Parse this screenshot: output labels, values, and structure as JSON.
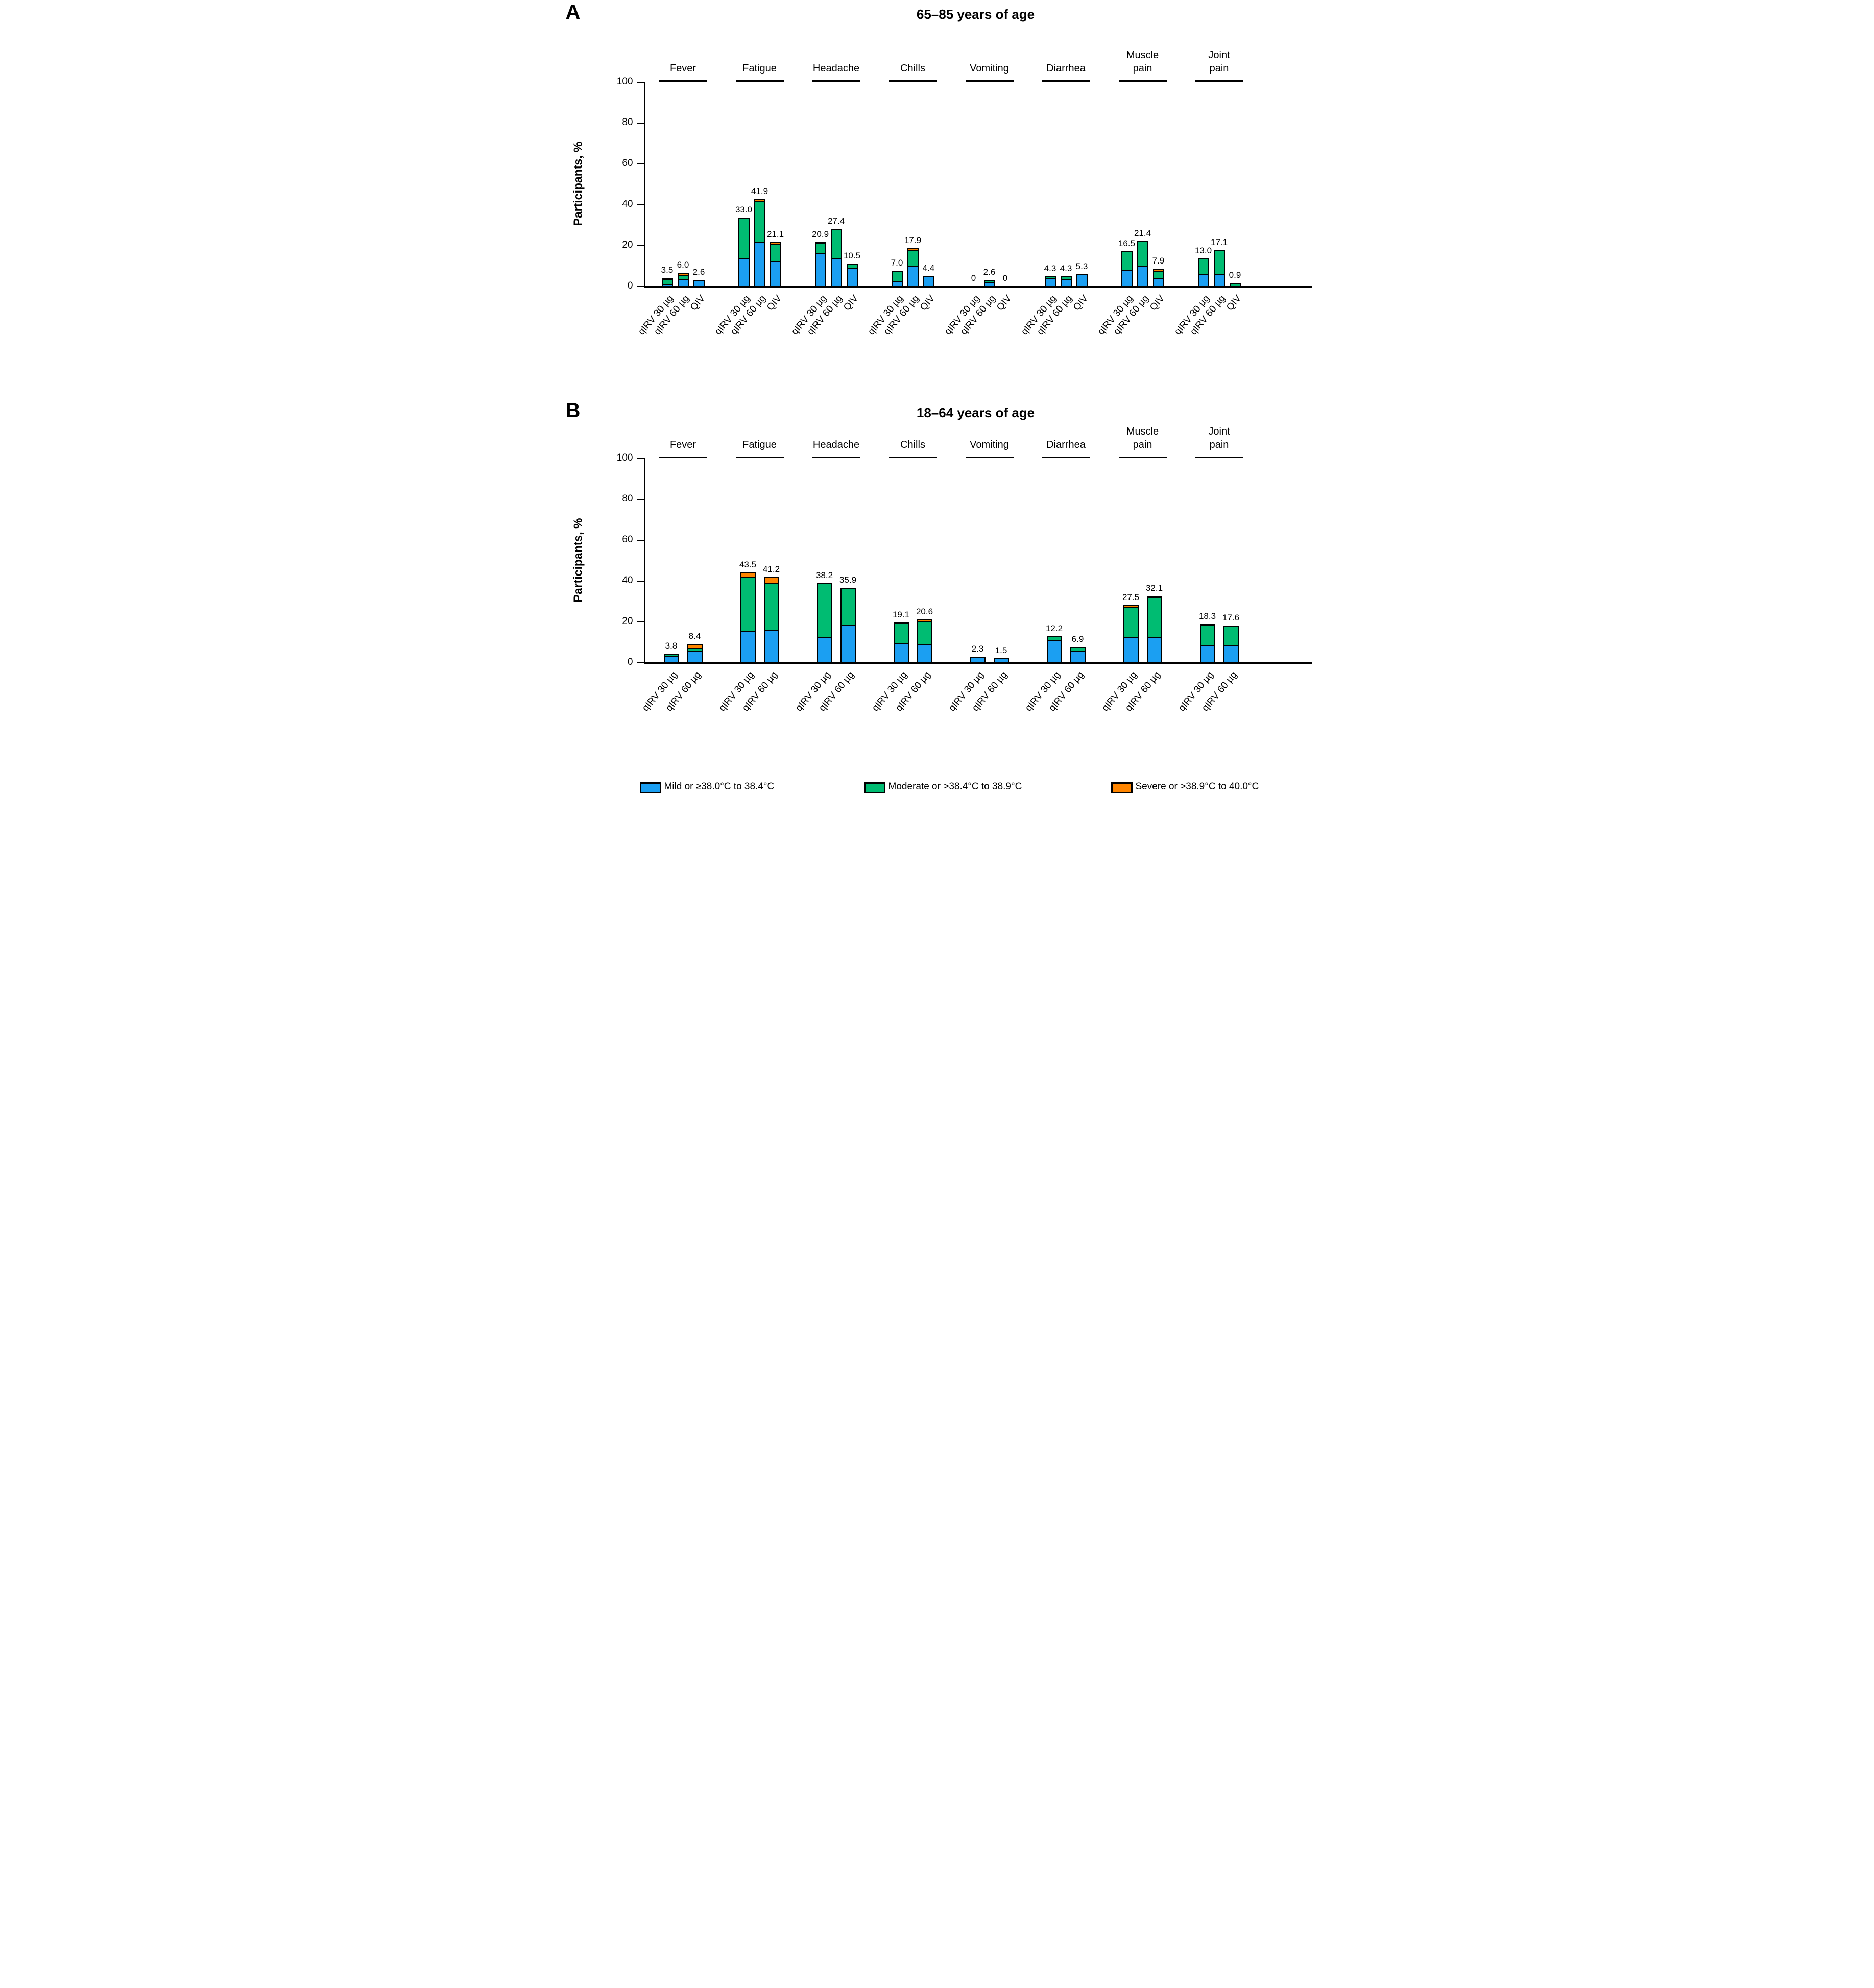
{
  "colors": {
    "mild": "#1B9FF2",
    "moderate": "#00BC72",
    "severe": "#FF8500",
    "axis": "#000000",
    "background": "#FFFFFF"
  },
  "chart_data": [
    {
      "type": "bar",
      "stacked": true,
      "panel_letter": "A",
      "title": "65–85 years of age",
      "ylabel": "Participants, %",
      "ylim": [
        0,
        100
      ],
      "yticks": [
        0,
        20,
        40,
        60,
        80,
        100
      ],
      "series_labels": [
        "qIRV 30 µg",
        "qIRV 60 µg",
        "QIV"
      ],
      "severity_keys": [
        "mild",
        "moderate",
        "severe"
      ],
      "categories": [
        {
          "label_lines": [
            "Fever"
          ]
        },
        {
          "label_lines": [
            "Fatigue"
          ]
        },
        {
          "label_lines": [
            "Headache"
          ]
        },
        {
          "label_lines": [
            "Chills"
          ]
        },
        {
          "label_lines": [
            "Vomiting"
          ]
        },
        {
          "label_lines": [
            "Diarrhea"
          ]
        },
        {
          "label_lines": [
            "Muscle",
            "pain"
          ]
        },
        {
          "label_lines": [
            "Joint",
            "pain"
          ]
        }
      ],
      "groups": [
        {
          "category": "Fever",
          "bars": [
            {
              "x_label": "qIRV 30 µg",
              "total_label": "3.5",
              "mild": 0.4,
              "moderate": 2.4,
              "severe": 0.7
            },
            {
              "x_label": "qIRV 60 µg",
              "total_label": "6.0",
              "mild": 3.0,
              "moderate": 2.0,
              "severe": 1.0
            },
            {
              "x_label": "QIV",
              "total_label": "2.6",
              "mild": 2.6,
              "moderate": 0,
              "severe": 0
            }
          ]
        },
        {
          "category": "Fatigue",
          "bars": [
            {
              "x_label": "qIRV 30 µg",
              "total_label": "33.0",
              "mild": 13.2,
              "moderate": 19.8,
              "severe": 0
            },
            {
              "x_label": "qIRV 60 µg",
              "total_label": "41.9",
              "mild": 20.9,
              "moderate": 20.0,
              "severe": 1.0
            },
            {
              "x_label": "QIV",
              "total_label": "21.1",
              "mild": 11.6,
              "moderate": 8.5,
              "severe": 1.0
            }
          ]
        },
        {
          "category": "Headache",
          "bars": [
            {
              "x_label": "qIRV 30 µg",
              "total_label": "20.9",
              "mild": 15.5,
              "moderate": 5.0,
              "severe": 0.4
            },
            {
              "x_label": "qIRV 60 µg",
              "total_label": "27.4",
              "mild": 13.2,
              "moderate": 14.2,
              "severe": 0
            },
            {
              "x_label": "QIV",
              "total_label": "10.5",
              "mild": 8.4,
              "moderate": 2.1,
              "severe": 0
            }
          ]
        },
        {
          "category": "Chills",
          "bars": [
            {
              "x_label": "qIRV 30 µg",
              "total_label": "7.0",
              "mild": 1.8,
              "moderate": 5.2,
              "severe": 0
            },
            {
              "x_label": "qIRV 60 µg",
              "total_label": "17.9",
              "mild": 9.4,
              "moderate": 7.5,
              "severe": 1.0
            },
            {
              "x_label": "QIV",
              "total_label": "4.4",
              "mild": 4.4,
              "moderate": 0,
              "severe": 0
            }
          ]
        },
        {
          "category": "Vomiting",
          "bars": [
            {
              "x_label": "qIRV 30 µg",
              "total_label": "0",
              "mild": 0,
              "moderate": 0,
              "severe": 0
            },
            {
              "x_label": "qIRV 60 µg",
              "total_label": "2.6",
              "mild": 1.2,
              "moderate": 1.4,
              "severe": 0
            },
            {
              "x_label": "QIV",
              "total_label": "0",
              "mild": 0,
              "moderate": 0,
              "severe": 0
            }
          ]
        },
        {
          "category": "Diarrhea",
          "bars": [
            {
              "x_label": "qIRV 30 µg",
              "total_label": "4.3",
              "mild": 3.4,
              "moderate": 0.9,
              "severe": 0
            },
            {
              "x_label": "qIRV 60 µg",
              "total_label": "4.3",
              "mild": 2.8,
              "moderate": 1.5,
              "severe": 0
            },
            {
              "x_label": "QIV",
              "total_label": "5.3",
              "mild": 5.3,
              "moderate": 0,
              "severe": 0
            }
          ]
        },
        {
          "category": "Muscle pain",
          "bars": [
            {
              "x_label": "qIRV 30 µg",
              "total_label": "16.5",
              "mild": 7.6,
              "moderate": 8.9,
              "severe": 0
            },
            {
              "x_label": "qIRV 60 µg",
              "total_label": "21.4",
              "mild": 9.4,
              "moderate": 12.0,
              "severe": 0
            },
            {
              "x_label": "QIV",
              "total_label": "7.9",
              "mild": 3.4,
              "moderate": 3.4,
              "severe": 1.1
            }
          ]
        },
        {
          "category": "Joint pain",
          "bars": [
            {
              "x_label": "qIRV 30 µg",
              "total_label": "13.0",
              "mild": 5.2,
              "moderate": 7.8,
              "severe": 0
            },
            {
              "x_label": "qIRV 60 µg",
              "total_label": "17.1",
              "mild": 5.4,
              "moderate": 11.7,
              "severe": 0
            },
            {
              "x_label": "QIV",
              "total_label": "0.9",
              "mild": 0,
              "moderate": 0.9,
              "severe": 0
            }
          ]
        }
      ]
    },
    {
      "type": "bar",
      "stacked": true,
      "panel_letter": "B",
      "title": "18–64 years of age",
      "ylabel": "Participants, %",
      "ylim": [
        0,
        100
      ],
      "yticks": [
        0,
        20,
        40,
        60,
        80,
        100
      ],
      "series_labels": [
        "qIRV 30 µg",
        "qIRV 60 µg"
      ],
      "severity_keys": [
        "mild",
        "moderate",
        "severe"
      ],
      "categories": [
        {
          "label_lines": [
            "Fever"
          ]
        },
        {
          "label_lines": [
            "Fatigue"
          ]
        },
        {
          "label_lines": [
            "Headache"
          ]
        },
        {
          "label_lines": [
            "Chills"
          ]
        },
        {
          "label_lines": [
            "Vomiting"
          ]
        },
        {
          "label_lines": [
            "Diarrhea"
          ]
        },
        {
          "label_lines": [
            "Muscle",
            "pain"
          ]
        },
        {
          "label_lines": [
            "Joint",
            "pain"
          ]
        }
      ],
      "groups": [
        {
          "category": "Fever",
          "bars": [
            {
              "x_label": "qIRV 30 µg",
              "total_label": "3.8",
              "mild": 2.9,
              "moderate": 0.9,
              "severe": 0
            },
            {
              "x_label": "qIRV 60 µg",
              "total_label": "8.4",
              "mild": 5.0,
              "moderate": 1.6,
              "severe": 1.8
            }
          ]
        },
        {
          "category": "Fatigue",
          "bars": [
            {
              "x_label": "qIRV 30 µg",
              "total_label": "43.5",
              "mild": 15.0,
              "moderate": 26.5,
              "severe": 2.0
            },
            {
              "x_label": "qIRV 60 µg",
              "total_label": "41.2",
              "mild": 15.5,
              "moderate": 22.8,
              "severe": 2.9
            }
          ]
        },
        {
          "category": "Headache",
          "bars": [
            {
              "x_label": "qIRV 30 µg",
              "total_label": "38.2",
              "mild": 12.0,
              "moderate": 26.2,
              "severe": 0
            },
            {
              "x_label": "qIRV 60 µg",
              "total_label": "35.9",
              "mild": 17.7,
              "moderate": 18.2,
              "severe": 0
            }
          ]
        },
        {
          "category": "Chills",
          "bars": [
            {
              "x_label": "qIRV 30 µg",
              "total_label": "19.1",
              "mild": 8.8,
              "moderate": 10.3,
              "severe": 0
            },
            {
              "x_label": "qIRV 60 µg",
              "total_label": "20.6",
              "mild": 8.5,
              "moderate": 11.4,
              "severe": 0.7
            }
          ]
        },
        {
          "category": "Vomiting",
          "bars": [
            {
              "x_label": "qIRV 30 µg",
              "total_label": "2.3",
              "mild": 2.3,
              "moderate": 0,
              "severe": 0
            },
            {
              "x_label": "qIRV 60 µg",
              "total_label": "1.5",
              "mild": 1.5,
              "moderate": 0,
              "severe": 0
            }
          ]
        },
        {
          "category": "Diarrhea",
          "bars": [
            {
              "x_label": "qIRV 30 µg",
              "total_label": "12.2",
              "mild": 10.3,
              "moderate": 1.9,
              "severe": 0
            },
            {
              "x_label": "qIRV 60 µg",
              "total_label": "6.9",
              "mild": 4.9,
              "moderate": 2.0,
              "severe": 0
            }
          ]
        },
        {
          "category": "Muscle pain",
          "bars": [
            {
              "x_label": "qIRV 30 µg",
              "total_label": "27.5",
              "mild": 12.0,
              "moderate": 14.8,
              "severe": 0.7
            },
            {
              "x_label": "qIRV 60 µg",
              "total_label": "32.1",
              "mild": 12.0,
              "moderate": 19.5,
              "severe": 0.6
            }
          ]
        },
        {
          "category": "Joint pain",
          "bars": [
            {
              "x_label": "qIRV 30 µg",
              "total_label": "18.3",
              "mild": 8.0,
              "moderate": 9.7,
              "severe": 0.6
            },
            {
              "x_label": "qIRV 60 µg",
              "total_label": "17.6",
              "mild": 7.8,
              "moderate": 9.8,
              "severe": 0
            }
          ]
        }
      ]
    }
  ],
  "legend": {
    "items": [
      {
        "name": "mild",
        "label": "Mild or ≥38.0°C to 38.4°C",
        "color": "#1B9FF2"
      },
      {
        "name": "moderate",
        "label": "Moderate or >38.4°C to 38.9°C",
        "color": "#00BC72"
      },
      {
        "name": "severe",
        "label": "Severe or >38.9°C to 40.0°C",
        "color": "#FF8500"
      }
    ]
  }
}
